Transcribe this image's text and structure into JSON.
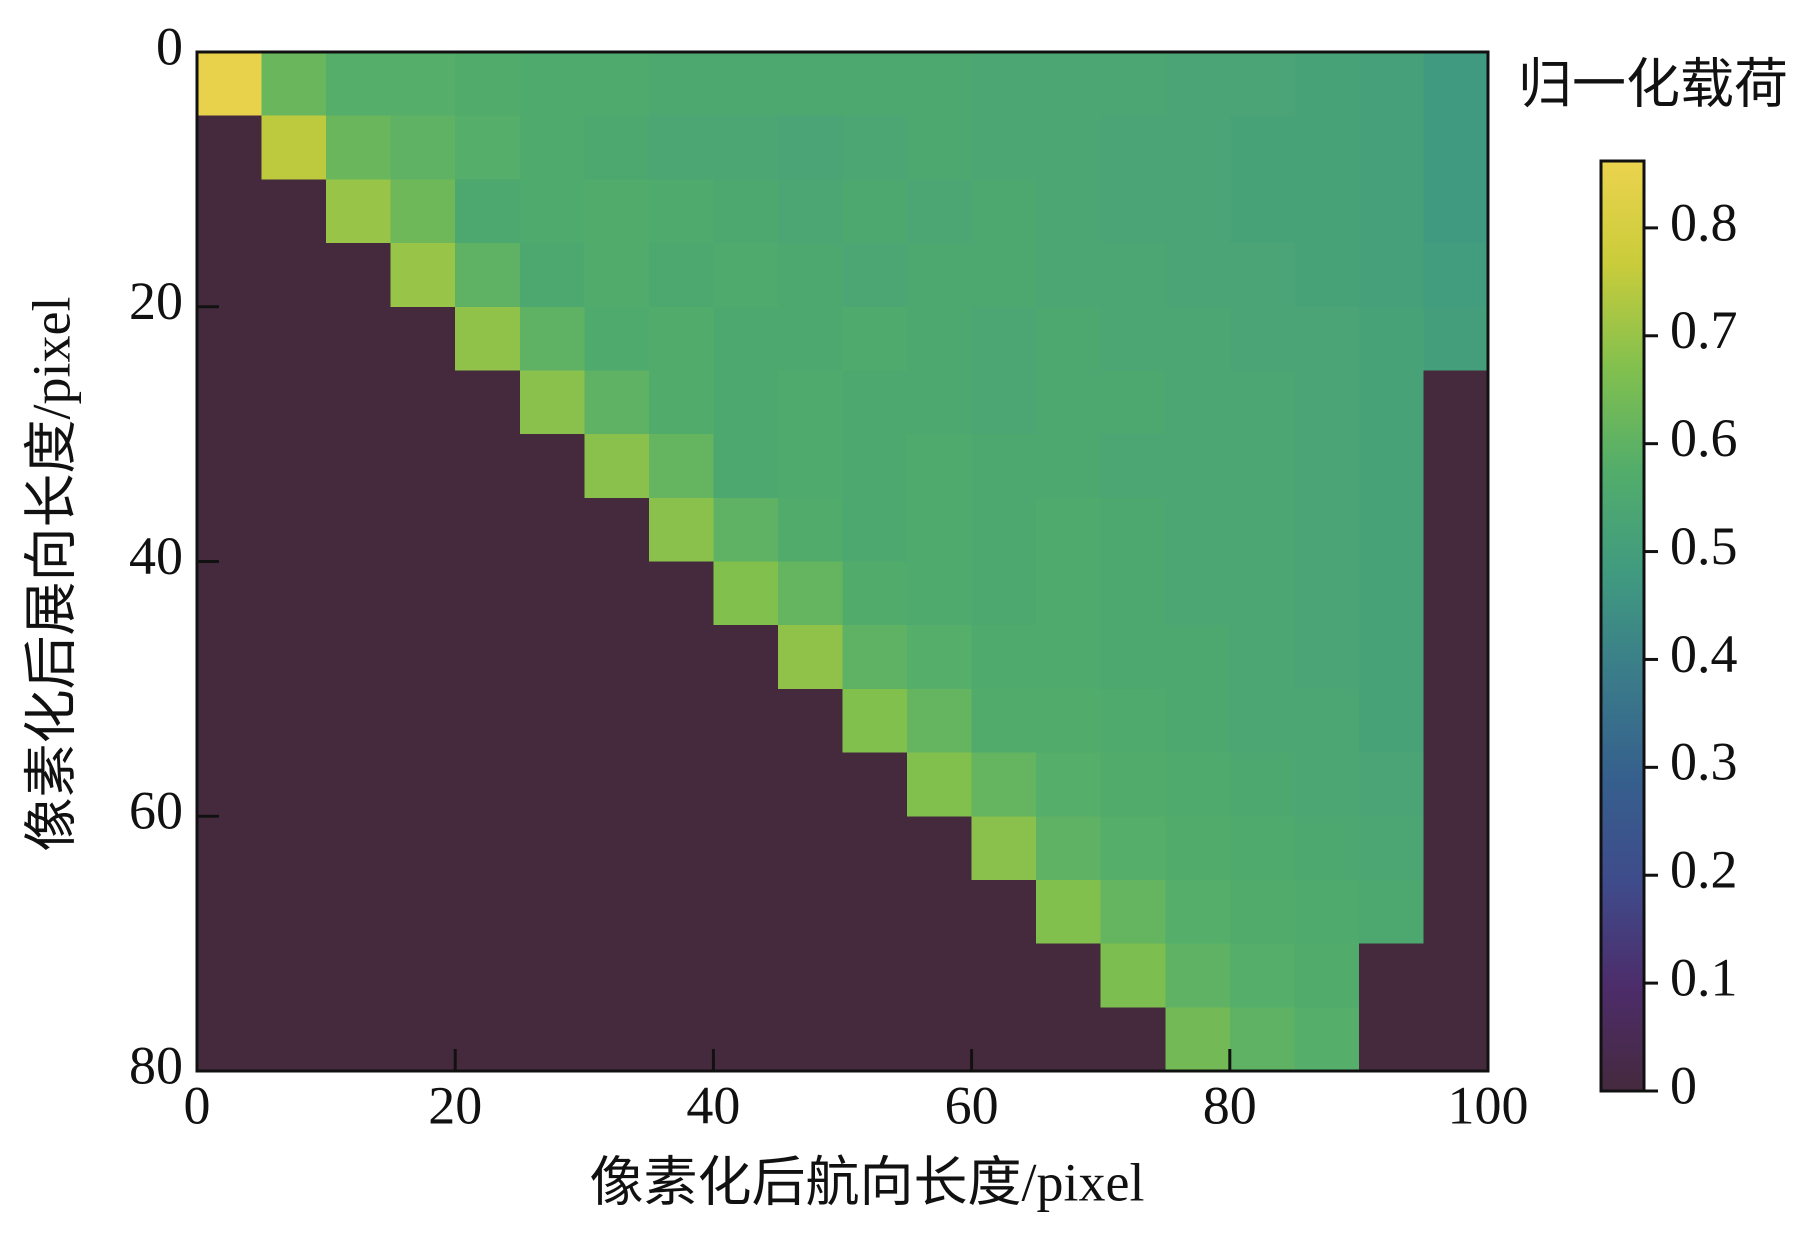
{
  "chart_data": {
    "type": "heatmap",
    "xlabel": "像素化后航向长度/pixel",
    "ylabel": "像素化后展向长度/pixel",
    "colorbar_label": "归一化载荷",
    "xlim": [
      0,
      100
    ],
    "ylim": [
      0,
      80
    ],
    "y_inverted": true,
    "xticks": [
      0,
      20,
      40,
      60,
      80,
      100
    ],
    "yticks": [
      0,
      20,
      40,
      60,
      80
    ],
    "xbins": [
      0,
      5,
      10,
      15,
      20,
      25,
      30,
      35,
      40,
      45,
      50,
      55,
      60,
      65,
      70,
      75,
      80,
      85,
      90,
      95,
      100
    ],
    "ybins": [
      0,
      5,
      10,
      15,
      20,
      25,
      30,
      35,
      40,
      45,
      50,
      55,
      60,
      65,
      70,
      75,
      80
    ],
    "clim": [
      0,
      0.862
    ],
    "cticks": [
      0,
      0.1,
      0.2,
      0.3,
      0.4,
      0.5,
      0.6,
      0.7,
      0.8
    ],
    "colormap": [
      "#452a3e",
      "#4d2c6a",
      "#3f4b8b",
      "#365f8d",
      "#3a7b8a",
      "#409a80",
      "#52ad6b",
      "#82c04e",
      "#c9cc3b",
      "#ecd34e"
    ],
    "z": [
      [
        0.85,
        0.62,
        0.58,
        0.58,
        0.57,
        0.56,
        0.56,
        0.55,
        0.55,
        0.55,
        0.55,
        0.55,
        0.54,
        0.54,
        0.54,
        0.53,
        0.53,
        0.52,
        0.51,
        0.48
      ],
      [
        0,
        0.75,
        0.62,
        0.6,
        0.58,
        0.56,
        0.55,
        0.54,
        0.54,
        0.53,
        0.54,
        0.55,
        0.54,
        0.54,
        0.53,
        0.53,
        0.52,
        0.52,
        0.51,
        0.48
      ],
      [
        0,
        0,
        0.7,
        0.63,
        0.55,
        0.56,
        0.57,
        0.56,
        0.55,
        0.54,
        0.55,
        0.54,
        0.55,
        0.54,
        0.53,
        0.53,
        0.52,
        0.52,
        0.51,
        0.48
      ],
      [
        0,
        0,
        0,
        0.7,
        0.6,
        0.55,
        0.57,
        0.55,
        0.56,
        0.55,
        0.54,
        0.55,
        0.55,
        0.54,
        0.54,
        0.53,
        0.53,
        0.52,
        0.51,
        0.49
      ],
      [
        0,
        0,
        0,
        0,
        0.69,
        0.6,
        0.56,
        0.57,
        0.55,
        0.55,
        0.56,
        0.55,
        0.54,
        0.55,
        0.54,
        0.54,
        0.53,
        0.53,
        0.52,
        0.5
      ],
      [
        0,
        0,
        0,
        0,
        0,
        0.68,
        0.6,
        0.57,
        0.55,
        0.56,
        0.55,
        0.55,
        0.54,
        0.55,
        0.55,
        0.54,
        0.54,
        0.53,
        0.52,
        0
      ],
      [
        0,
        0,
        0,
        0,
        0,
        0,
        0.68,
        0.61,
        0.55,
        0.56,
        0.55,
        0.56,
        0.55,
        0.55,
        0.54,
        0.54,
        0.54,
        0.53,
        0.52,
        0
      ],
      [
        0,
        0,
        0,
        0,
        0,
        0,
        0,
        0.68,
        0.6,
        0.57,
        0.55,
        0.56,
        0.55,
        0.56,
        0.55,
        0.54,
        0.54,
        0.53,
        0.52,
        0
      ],
      [
        0,
        0,
        0,
        0,
        0,
        0,
        0,
        0,
        0.67,
        0.61,
        0.57,
        0.56,
        0.55,
        0.56,
        0.55,
        0.54,
        0.54,
        0.53,
        0.52,
        0
      ],
      [
        0,
        0,
        0,
        0,
        0,
        0,
        0,
        0,
        0,
        0.69,
        0.6,
        0.58,
        0.56,
        0.56,
        0.55,
        0.55,
        0.54,
        0.53,
        0.52,
        0
      ],
      [
        0,
        0,
        0,
        0,
        0,
        0,
        0,
        0,
        0,
        0,
        0.67,
        0.61,
        0.57,
        0.57,
        0.56,
        0.55,
        0.54,
        0.54,
        0.52,
        0
      ],
      [
        0,
        0,
        0,
        0,
        0,
        0,
        0,
        0,
        0,
        0,
        0,
        0.67,
        0.61,
        0.58,
        0.57,
        0.56,
        0.55,
        0.54,
        0.53,
        0
      ],
      [
        0,
        0,
        0,
        0,
        0,
        0,
        0,
        0,
        0,
        0,
        0,
        0,
        0.68,
        0.6,
        0.58,
        0.57,
        0.56,
        0.55,
        0.54,
        0
      ],
      [
        0,
        0,
        0,
        0,
        0,
        0,
        0,
        0,
        0,
        0,
        0,
        0,
        0,
        0.67,
        0.61,
        0.58,
        0.57,
        0.56,
        0.55,
        0
      ],
      [
        0,
        0,
        0,
        0,
        0,
        0,
        0,
        0,
        0,
        0,
        0,
        0,
        0,
        0,
        0.66,
        0.6,
        0.58,
        0.57,
        0,
        0
      ],
      [
        0,
        0,
        0,
        0,
        0,
        0,
        0,
        0,
        0,
        0,
        0,
        0,
        0,
        0,
        0,
        0.64,
        0.6,
        0.58,
        0,
        0
      ]
    ]
  }
}
